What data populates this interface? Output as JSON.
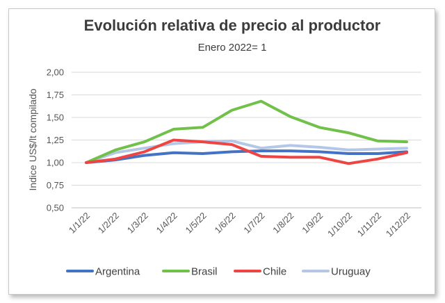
{
  "chart_data": {
    "type": "line",
    "title": "Evolución relativa de precio al productor",
    "subtitle": "Enero 2022= 1",
    "xlabel": "",
    "ylabel": "Indice US$/lt compilado",
    "x": [
      "1/1/22",
      "1/2/22",
      "1/3/22",
      "1/4/22",
      "1/5/22",
      "1/6/22",
      "1/7/22",
      "1/8/22",
      "1/9/22",
      "1/10/22",
      "1/11/22",
      "1/12/22"
    ],
    "ylim": [
      0.5,
      2.0
    ],
    "yticks": [
      "0,50",
      "0,75",
      "1,00",
      "1,25",
      "1,50",
      "1,75",
      "2,00"
    ],
    "ytick_values": [
      0.5,
      0.75,
      1.0,
      1.25,
      1.5,
      1.75,
      2.0
    ],
    "grid": true,
    "legend_position": "bottom",
    "series": [
      {
        "name": "Argentina",
        "color": "#4472c4",
        "values": [
          1.0,
          1.03,
          1.08,
          1.11,
          1.1,
          1.12,
          1.13,
          1.13,
          1.12,
          1.1,
          1.1,
          1.12
        ]
      },
      {
        "name": "Brasil",
        "color": "#70c04a",
        "values": [
          1.0,
          1.14,
          1.23,
          1.37,
          1.39,
          1.58,
          1.68,
          1.51,
          1.39,
          1.33,
          1.24,
          1.23
        ]
      },
      {
        "name": "Chile",
        "color": "#ef4444",
        "values": [
          1.0,
          1.04,
          1.12,
          1.25,
          1.23,
          1.2,
          1.07,
          1.06,
          1.06,
          0.99,
          1.04,
          1.11
        ]
      },
      {
        "name": "Uruguay",
        "color": "#b4c7e7",
        "values": [
          1.0,
          1.11,
          1.16,
          1.21,
          1.23,
          1.24,
          1.16,
          1.19,
          1.17,
          1.14,
          1.15,
          1.16
        ]
      }
    ]
  }
}
